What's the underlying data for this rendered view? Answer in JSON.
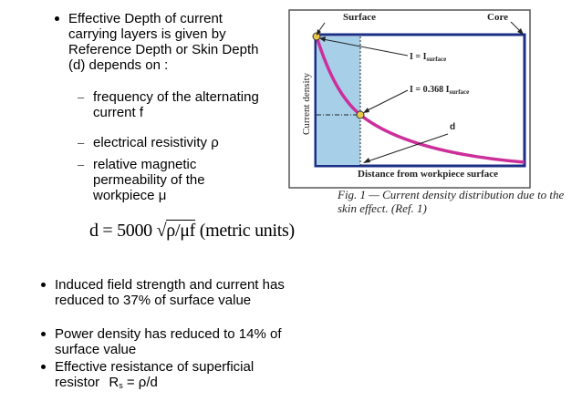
{
  "bullets_top": {
    "main": "Effective Depth of current carrying layers is given by Reference Depth or Skin Depth (d) depends on :",
    "sub": [
      "frequency of the alternating current f",
      "electrical resistivity ρ",
      "relative magnetic permeability of the workpiece μ"
    ]
  },
  "formula": {
    "lhs": "d = 5000",
    "radicand": "ρ/μf",
    "unit": "(metric units)"
  },
  "bullets_bottom": [
    "Induced field strength and current has reduced to 37% of surface value",
    "Power density has reduced to 14% of surface value"
  ],
  "resistance": {
    "text": "Effective resistance of superficial resistor",
    "symbol": "R",
    "subscript": "s",
    "equation": "= ρ/d"
  },
  "figure": {
    "label_surface": "Surface",
    "label_core": "Core",
    "label_i_surface": "I = I",
    "label_i_surface_sub": "surface",
    "label_i_0368": "I = 0.368 I",
    "label_i_0368_sub": "surface",
    "label_d": "d",
    "ylabel": "Current density",
    "xlabel": "Distance from workpiece surface",
    "caption": "Fig. 1 — Current density distribution due to the skin effect. (Ref. 1)",
    "colors": {
      "frame": "#1b2f86",
      "curve": "#cc2f9a",
      "shade": "#a7cfe8",
      "marker": "#e9c84a"
    }
  }
}
